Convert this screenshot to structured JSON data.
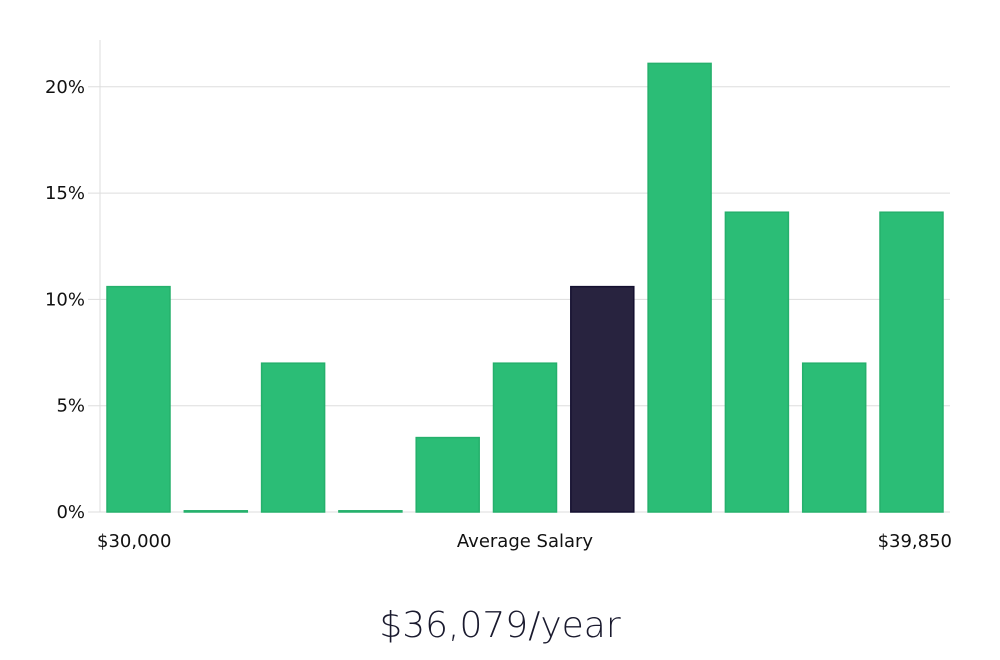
{
  "chart_data": {
    "type": "bar",
    "x_start_label": "$30,000",
    "x_middle_label": "Average Salary",
    "x_end_label": "$39,850",
    "y_ticks": [
      "0%",
      "5%",
      "10%",
      "15%",
      "20%"
    ],
    "y_tick_values": [
      0,
      5,
      10,
      15,
      20
    ],
    "ylim": [
      0,
      22.2
    ],
    "grid": true,
    "values": [
      10.6,
      0,
      7.0,
      0,
      3.5,
      7.0,
      10.6,
      21.1,
      14.1,
      7.0,
      14.1
    ],
    "highlight_index": 6,
    "colors": {
      "bar": "#2bbd76",
      "highlight": "#28233f",
      "highlight_stroke": "#141030"
    }
  },
  "summary": {
    "salary_text": "$36,079/year"
  }
}
